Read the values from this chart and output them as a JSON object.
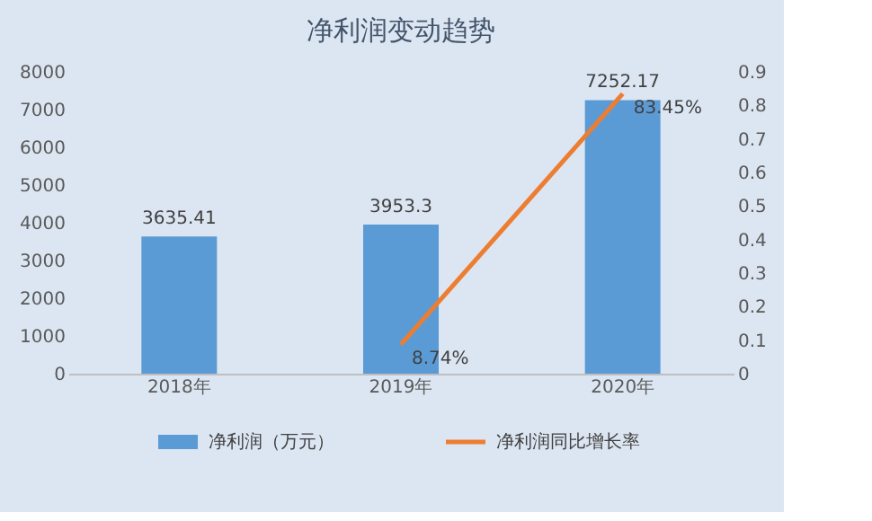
{
  "chart_data": {
    "type": "bar",
    "title": "净利润变动趋势",
    "categories": [
      "2018年",
      "2019年",
      "2020年"
    ],
    "series": [
      {
        "name": "净利润（万元）",
        "color": "#5b9bd5",
        "values": [
          3635.41,
          3953.3,
          7252.17
        ],
        "value_labels": [
          "3635.41",
          "3953.3",
          "7252.17"
        ]
      },
      {
        "name": "净利润同比增长率",
        "type": "line",
        "axis": "y2",
        "color": "#ed7d31",
        "values": [
          null,
          0.0874,
          0.8345
        ],
        "value_labels": [
          null,
          "8.74%",
          "83.45%"
        ]
      }
    ],
    "ylim": [
      0,
      8000
    ],
    "yticks": [
      0,
      1000,
      2000,
      3000,
      4000,
      5000,
      6000,
      7000,
      8000
    ],
    "y2lim": [
      0,
      0.9
    ],
    "y2ticks": [
      0,
      0.1,
      0.2,
      0.3,
      0.4,
      0.5,
      0.6,
      0.7,
      0.8,
      0.9
    ],
    "grid": false,
    "legend": "bottom"
  }
}
